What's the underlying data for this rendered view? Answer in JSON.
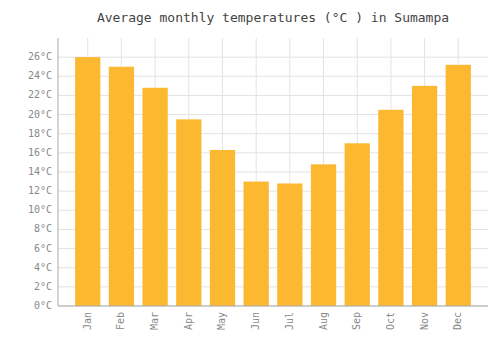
{
  "chart_data": {
    "type": "bar",
    "title": "Average monthly temperatures (°C ) in Sumampa",
    "categories": [
      "Jan",
      "Feb",
      "Mar",
      "Apr",
      "May",
      "Jun",
      "Jul",
      "Aug",
      "Sep",
      "Oct",
      "Nov",
      "Dec"
    ],
    "values": [
      26.0,
      25.0,
      22.8,
      19.5,
      16.3,
      13.0,
      12.8,
      14.8,
      17.0,
      20.5,
      23.0,
      25.2
    ],
    "color": "#FBB830",
    "ylim": [
      0,
      28
    ],
    "yticks": [
      {
        "value": 0,
        "label": "0°C"
      },
      {
        "value": 2,
        "label": "2°C"
      },
      {
        "value": 4,
        "label": "4°C"
      },
      {
        "value": 6,
        "label": "6°C"
      },
      {
        "value": 8,
        "label": "8°C"
      },
      {
        "value": 10,
        "label": "10°C"
      },
      {
        "value": 12,
        "label": "12°C"
      },
      {
        "value": 14,
        "label": "14°C"
      },
      {
        "value": 16,
        "label": "16°C"
      },
      {
        "value": 18,
        "label": "18°C"
      },
      {
        "value": 20,
        "label": "20°C"
      },
      {
        "value": 22,
        "label": "22°C"
      },
      {
        "value": 24,
        "label": "24°C"
      },
      {
        "value": 26,
        "label": "26°C"
      }
    ],
    "grid": true
  }
}
